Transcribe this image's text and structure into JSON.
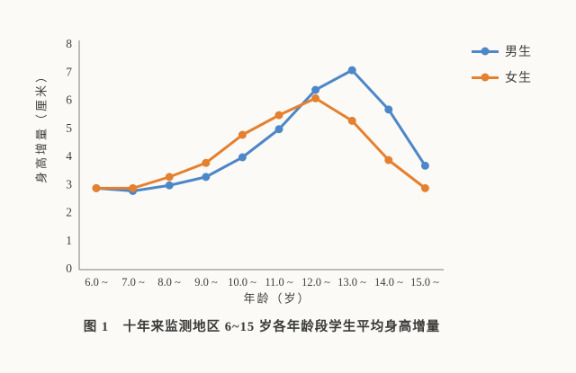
{
  "figure": {
    "caption": "图 1　十年来监测地区 6~15 岁各年龄段学生平均身高增量"
  },
  "chart_data": {
    "type": "line",
    "title": "",
    "xlabel": "年龄（岁）",
    "ylabel": "身高增量（厘米）",
    "categories": [
      "6.0 ~",
      "7.0 ~",
      "8.0 ~",
      "9.0 ~",
      "10.0 ~",
      "11.0 ~",
      "12.0 ~",
      "13.0 ~",
      "14.0 ~",
      "15.0 ~"
    ],
    "series": [
      {
        "key": "boys",
        "name": "男生",
        "color": "#4d87c7",
        "values": [
          2.9,
          2.8,
          3.0,
          3.3,
          4.0,
          5.0,
          6.4,
          7.1,
          5.7,
          3.7
        ]
      },
      {
        "key": "girls",
        "name": "女生",
        "color": "#e5802f",
        "values": [
          2.9,
          2.9,
          3.3,
          3.8,
          4.8,
          5.5,
          6.1,
          5.3,
          3.9,
          2.9
        ]
      }
    ],
    "ylim": [
      0,
      8
    ],
    "y_ticks": [
      "0",
      "1",
      "2",
      "3",
      "4",
      "5",
      "6",
      "7",
      "8"
    ],
    "grid": false,
    "legend_position": "top-right",
    "marker": "circle",
    "line_width": 3
  }
}
